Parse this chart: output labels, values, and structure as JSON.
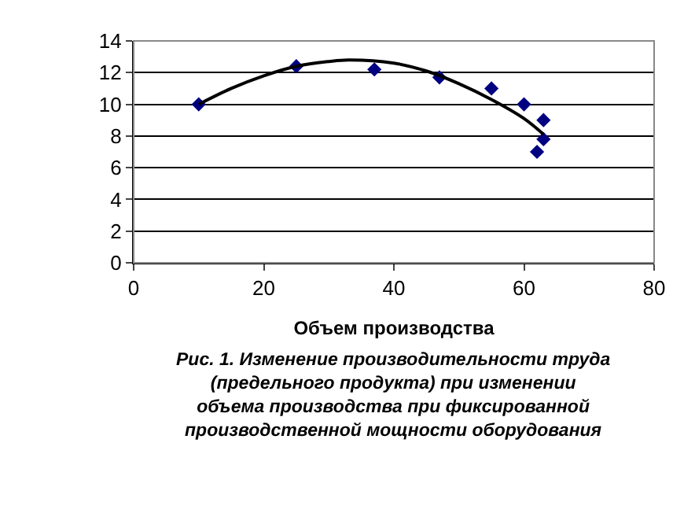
{
  "chart_data": {
    "type": "scatter",
    "xlabel": "Объем производства",
    "annotations": [
      "Рис. 1. Изменение производительности труда (предельного продукта) при изменении объема производства при фиксированной производственной мощности оборудования"
    ],
    "series": [
      {
        "color": "#000080",
        "marker": "diamond",
        "x": [
          10,
          25,
          37,
          47,
          55,
          60,
          62,
          63,
          63
        ],
        "values": [
          10,
          12.4,
          12.2,
          11.7,
          11,
          10,
          7,
          9,
          7.8
        ]
      },
      {
        "type": "line",
        "color": "#000000",
        "marker": "none",
        "x": [
          10,
          15,
          20,
          25,
          30,
          33,
          40,
          45,
          50,
          55,
          60,
          63
        ],
        "values": [
          10,
          11,
          11.8,
          12.4,
          12.7,
          12.8,
          12.6,
          12.1,
          11.3,
          10.3,
          9.1,
          8.1
        ]
      }
    ],
    "xlim": [
      0,
      80
    ],
    "xticks": [
      0,
      20,
      40,
      60,
      80
    ],
    "ylim": [
      0,
      14
    ],
    "yticks": [
      0,
      2,
      4,
      6,
      8,
      10,
      12,
      14
    ],
    "grid": "y"
  }
}
